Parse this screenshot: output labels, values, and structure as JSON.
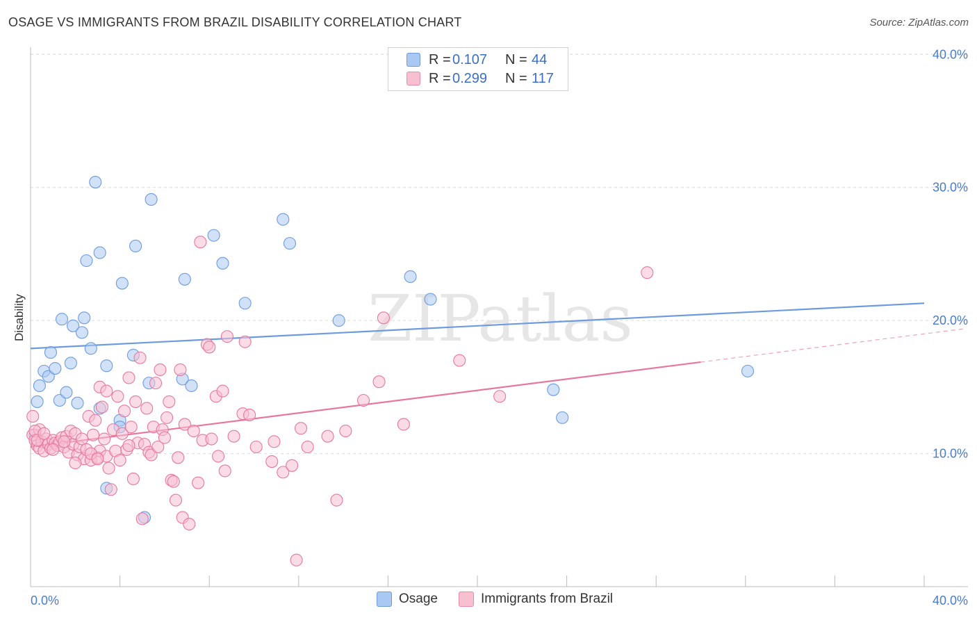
{
  "title": "OSAGE VS IMMIGRANTS FROM BRAZIL DISABILITY CORRELATION CHART",
  "source": "Source: ZipAtlas.com",
  "watermark": "ZIPatlas",
  "legend": {
    "rows": [
      {
        "r_label": "R =",
        "r_value": "0.107",
        "n_label": "N =",
        "n_value": "44",
        "color": "#a9c8f2",
        "border": "#6d9be0"
      },
      {
        "r_label": "R =",
        "r_value": "0.299",
        "n_label": "N =",
        "n_value": "117",
        "color": "#f7c0d1",
        "border": "#e88aa9"
      }
    ]
  },
  "bottom_legend": [
    {
      "label": "Osage",
      "color": "#a9c8f2",
      "border": "#6d9be0"
    },
    {
      "label": "Immigrants from Brazil",
      "color": "#f7c0d1",
      "border": "#e88aa9"
    }
  ],
  "chart_data": {
    "type": "scatter",
    "title": "OSAGE VS IMMIGRANTS FROM BRAZIL DISABILITY CORRELATION CHART",
    "xlabel": "",
    "ylabel": "Disability",
    "xlim": [
      0,
      40
    ],
    "ylim": [
      0,
      42
    ],
    "x_tick_labels": [
      "0.0%",
      "40.0%"
    ],
    "y_ticks": [
      10,
      20,
      30,
      40
    ],
    "y_tick_labels": [
      "10.0%",
      "20.0%",
      "30.0%",
      "40.0%"
    ],
    "grid": "horizontal dashed",
    "series": [
      {
        "name": "Osage",
        "color": "#6d9be0",
        "fill": "#a9c8f2",
        "trend": {
          "x0": 0,
          "y0": 17.9,
          "x1": 40,
          "y1": 21.3,
          "dashed_from": null
        },
        "points": [
          [
            0.3,
            13.9
          ],
          [
            0.4,
            15.1
          ],
          [
            0.6,
            16.2
          ],
          [
            0.8,
            15.8
          ],
          [
            0.9,
            17.6
          ],
          [
            1.3,
            14.0
          ],
          [
            1.1,
            16.4
          ],
          [
            1.4,
            20.1
          ],
          [
            1.6,
            14.6
          ],
          [
            1.8,
            16.8
          ],
          [
            1.9,
            19.6
          ],
          [
            2.1,
            13.8
          ],
          [
            2.3,
            19.1
          ],
          [
            2.4,
            20.2
          ],
          [
            2.5,
            24.5
          ],
          [
            2.7,
            17.9
          ],
          [
            2.9,
            30.4
          ],
          [
            3.1,
            25.1
          ],
          [
            3.1,
            13.4
          ],
          [
            3.4,
            16.6
          ],
          [
            3.4,
            7.4
          ],
          [
            4.0,
            12.5
          ],
          [
            4.1,
            22.8
          ],
          [
            4.6,
            17.4
          ],
          [
            4.7,
            25.6
          ],
          [
            5.3,
            15.3
          ],
          [
            5.4,
            29.1
          ],
          [
            6.8,
            15.6
          ],
          [
            6.9,
            23.1
          ],
          [
            7.2,
            15.1
          ],
          [
            8.2,
            26.4
          ],
          [
            8.6,
            24.3
          ],
          [
            9.6,
            21.3
          ],
          [
            11.3,
            27.6
          ],
          [
            11.6,
            25.8
          ],
          [
            13.8,
            20.0
          ],
          [
            17.0,
            23.3
          ],
          [
            17.9,
            21.6
          ],
          [
            23.4,
            14.8
          ],
          [
            23.8,
            12.7
          ],
          [
            32.1,
            16.2
          ],
          [
            5.1,
            5.2
          ],
          [
            4.0,
            12.0
          ],
          [
            0.2,
            11.4
          ]
        ]
      },
      {
        "name": "Immigrants from Brazil",
        "color": "#e8779c",
        "fill": "#f7c0d1",
        "trend": {
          "x0": 0,
          "y0": 10.5,
          "x1": 40,
          "y1": 19.0,
          "dashed_from": 30
        },
        "points": [
          [
            0.1,
            11.4
          ],
          [
            0.2,
            11.0
          ],
          [
            0.3,
            10.6
          ],
          [
            0.4,
            11.8
          ],
          [
            0.4,
            10.4
          ],
          [
            0.5,
            10.9
          ],
          [
            0.6,
            10.2
          ],
          [
            0.7,
            11.1
          ],
          [
            0.8,
            10.7
          ],
          [
            0.9,
            10.4
          ],
          [
            1.0,
            11.0
          ],
          [
            1.1,
            10.8
          ],
          [
            1.2,
            10.6
          ],
          [
            1.3,
            10.9
          ],
          [
            1.4,
            11.2
          ],
          [
            1.5,
            10.5
          ],
          [
            1.6,
            11.3
          ],
          [
            1.7,
            10.1
          ],
          [
            1.8,
            11.7
          ],
          [
            1.9,
            10.7
          ],
          [
            2.0,
            11.5
          ],
          [
            2.1,
            9.9
          ],
          [
            2.2,
            10.5
          ],
          [
            2.3,
            11.1
          ],
          [
            2.4,
            9.6
          ],
          [
            2.5,
            10.3
          ],
          [
            2.6,
            12.8
          ],
          [
            2.7,
            9.5
          ],
          [
            2.8,
            11.4
          ],
          [
            2.9,
            12.5
          ],
          [
            3.0,
            9.7
          ],
          [
            3.1,
            10.2
          ],
          [
            3.1,
            15.0
          ],
          [
            3.2,
            13.5
          ],
          [
            3.3,
            11.1
          ],
          [
            3.4,
            9.8
          ],
          [
            3.4,
            14.7
          ],
          [
            3.5,
            8.9
          ],
          [
            3.6,
            7.3
          ],
          [
            3.7,
            11.8
          ],
          [
            3.8,
            10.2
          ],
          [
            3.9,
            14.3
          ],
          [
            4.0,
            9.5
          ],
          [
            4.1,
            11.5
          ],
          [
            4.2,
            13.2
          ],
          [
            4.3,
            10.3
          ],
          [
            4.4,
            15.7
          ],
          [
            4.5,
            12.0
          ],
          [
            4.6,
            8.1
          ],
          [
            4.7,
            13.9
          ],
          [
            4.8,
            10.8
          ],
          [
            4.9,
            17.2
          ],
          [
            5.0,
            5.1
          ],
          [
            5.1,
            10.7
          ],
          [
            5.2,
            13.4
          ],
          [
            5.3,
            10.1
          ],
          [
            5.4,
            9.9
          ],
          [
            5.5,
            12.0
          ],
          [
            5.6,
            15.3
          ],
          [
            5.7,
            10.5
          ],
          [
            5.8,
            16.3
          ],
          [
            5.9,
            11.8
          ],
          [
            6.0,
            11.2
          ],
          [
            6.1,
            12.7
          ],
          [
            6.2,
            13.9
          ],
          [
            6.3,
            8.0
          ],
          [
            6.4,
            7.9
          ],
          [
            6.5,
            6.5
          ],
          [
            6.6,
            9.7
          ],
          [
            6.7,
            16.3
          ],
          [
            6.8,
            5.2
          ],
          [
            6.9,
            12.2
          ],
          [
            7.1,
            4.7
          ],
          [
            7.3,
            11.7
          ],
          [
            7.5,
            7.8
          ],
          [
            7.6,
            25.9
          ],
          [
            7.7,
            11.0
          ],
          [
            7.9,
            18.2
          ],
          [
            8.0,
            18.0
          ],
          [
            8.1,
            11.1
          ],
          [
            8.3,
            14.3
          ],
          [
            8.4,
            9.8
          ],
          [
            8.6,
            14.7
          ],
          [
            8.7,
            8.7
          ],
          [
            8.8,
            18.8
          ],
          [
            9.1,
            11.3
          ],
          [
            9.5,
            13.0
          ],
          [
            9.6,
            18.4
          ],
          [
            9.8,
            12.9
          ],
          [
            10.1,
            10.5
          ],
          [
            10.8,
            9.4
          ],
          [
            10.9,
            10.9
          ],
          [
            11.3,
            8.6
          ],
          [
            11.7,
            9.1
          ],
          [
            11.9,
            2.0
          ],
          [
            12.1,
            11.9
          ],
          [
            12.4,
            10.5
          ],
          [
            13.3,
            11.3
          ],
          [
            13.7,
            6.5
          ],
          [
            14.1,
            11.7
          ],
          [
            14.9,
            14.0
          ],
          [
            15.6,
            15.4
          ],
          [
            15.8,
            20.2
          ],
          [
            16.7,
            12.2
          ],
          [
            19.2,
            17.0
          ],
          [
            21.0,
            14.3
          ],
          [
            27.6,
            23.6
          ],
          [
            0.1,
            12.8
          ],
          [
            0.2,
            11.7
          ],
          [
            0.3,
            11.0
          ],
          [
            0.6,
            11.5
          ],
          [
            1.0,
            10.3
          ],
          [
            1.5,
            10.9
          ],
          [
            2.0,
            9.3
          ],
          [
            2.7,
            10.0
          ],
          [
            3.0,
            9.6
          ],
          [
            4.4,
            10.6
          ]
        ]
      }
    ]
  }
}
